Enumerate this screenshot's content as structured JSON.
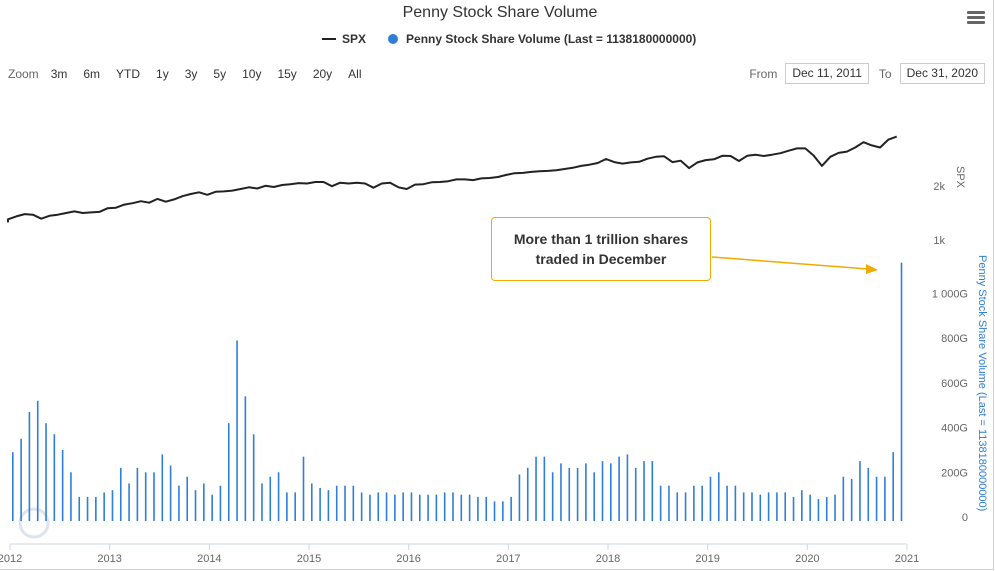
{
  "title": "Penny Stock Share Volume",
  "legend": {
    "spx": "SPX",
    "volume": "Penny Stock Share Volume (Last = 1138180000000)"
  },
  "zoom": {
    "label": "Zoom",
    "buttons": [
      "3m",
      "6m",
      "YTD",
      "1y",
      "3y",
      "5y",
      "10y",
      "15y",
      "20y",
      "All"
    ]
  },
  "range": {
    "from_label": "From",
    "from_value": "Dec 11, 2011",
    "to_label": "To",
    "to_value": "Dec 31, 2020"
  },
  "annotation": {
    "line1": "More than 1 trillion shares",
    "line2": "traded in December"
  },
  "colors": {
    "spx": "#222222",
    "volume": "#2f7ed8",
    "annotation_border": "#f2a900"
  },
  "chart_data": {
    "type": "line+bar",
    "title": "Penny Stock Share Volume",
    "x_tick_labels": [
      "2012",
      "2013",
      "2014",
      "2015",
      "2016",
      "2017",
      "2018",
      "2019",
      "2020",
      "2021"
    ],
    "spx_axis": {
      "label": "SPX",
      "tick_labels": [
        "1k",
        "2k"
      ],
      "ticks": [
        1000,
        2000
      ]
    },
    "volume_axis": {
      "label": "Penny Stock Share Volume (Last = 1138180000000)",
      "tick_labels": [
        "0",
        "200G",
        "400G",
        "600G",
        "800G",
        "1 000G"
      ],
      "ticks": [
        0,
        200,
        400,
        600,
        800,
        1000
      ],
      "unit": "G"
    },
    "series": [
      {
        "name": "SPX",
        "type": "line",
        "start": [
          2011,
          12
        ],
        "values": [
          1250,
          1300,
          1350,
          1390,
          1380,
          1310,
          1360,
          1380,
          1410,
          1440,
          1410,
          1420,
          1430,
          1500,
          1510,
          1570,
          1600,
          1640,
          1610,
          1690,
          1630,
          1680,
          1750,
          1800,
          1840,
          1780,
          1850,
          1860,
          1880,
          1920,
          1960,
          1930,
          2000,
          1970,
          2020,
          2040,
          2070,
          2060,
          2100,
          2100,
          1990,
          2080,
          2060,
          2080,
          2060,
          1950,
          2060,
          2080,
          1960,
          1920,
          2030,
          2040,
          2090,
          2100,
          2120,
          2170,
          2170,
          2150,
          2200,
          2210,
          2240,
          2300,
          2350,
          2360,
          2390,
          2410,
          2420,
          2440,
          2480,
          2520,
          2580,
          2620,
          2680,
          2820,
          2710,
          2660,
          2700,
          2720,
          2830,
          2900,
          2920,
          2710,
          2760,
          2510,
          2700,
          2780,
          2810,
          2940,
          2930,
          2750,
          2940,
          2980,
          2930,
          2980,
          3040,
          3140,
          3230,
          3230,
          2950,
          2580,
          2900,
          3050,
          3100,
          3270,
          3500,
          3360,
          3270,
          3620,
          3760
        ]
      },
      {
        "name": "Penny Stock Share Volume",
        "type": "bar",
        "start": [
          2012,
          1
        ],
        "unit": "G",
        "values": [
          290,
          350,
          470,
          520,
          420,
          370,
          300,
          200,
          90,
          90,
          90,
          110,
          120,
          220,
          150,
          220,
          200,
          200,
          280,
          230,
          140,
          180,
          120,
          150,
          100,
          140,
          420,
          790,
          540,
          370,
          150,
          180,
          200,
          110,
          110,
          270,
          150,
          130,
          120,
          140,
          140,
          140,
          110,
          100,
          110,
          110,
          100,
          110,
          110,
          100,
          100,
          100,
          110,
          110,
          100,
          100,
          90,
          90,
          70,
          70,
          90,
          190,
          220,
          270,
          270,
          200,
          240,
          220,
          220,
          240,
          200,
          250,
          240,
          270,
          280,
          220,
          250,
          250,
          140,
          140,
          110,
          110,
          140,
          140,
          180,
          200,
          140,
          140,
          110,
          110,
          100,
          110,
          110,
          110,
          90,
          120,
          100,
          80,
          90,
          100,
          180,
          170,
          250,
          220,
          180,
          180,
          290,
          1138
        ]
      }
    ]
  }
}
